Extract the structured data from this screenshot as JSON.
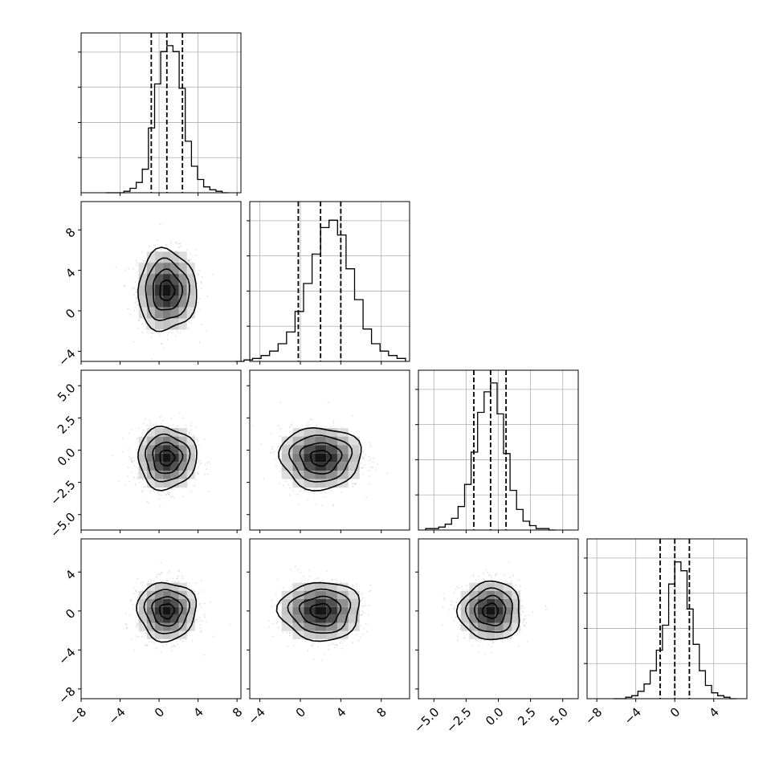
{
  "chart_data": {
    "type": "corner",
    "n_params": 4,
    "quantiles": [
      0.16,
      0.5,
      0.84
    ],
    "grid": true,
    "params": [
      {
        "mean": 0.8,
        "sd": 1.5,
        "range": [
          -8,
          8.4
        ],
        "ticks": [
          -8,
          -4,
          0,
          4,
          8
        ],
        "tick_labels": [
          "−8",
          "−4",
          "0",
          "4",
          "8"
        ],
        "q": [
          -0.8,
          0.8,
          2.4
        ]
      },
      {
        "mean": 2.0,
        "sd": 2.0,
        "range": [
          -5,
          10.8
        ],
        "ticks": [
          -4,
          0,
          4,
          8
        ],
        "tick_labels": [
          "−4",
          "0",
          "4",
          "8"
        ],
        "q": [
          -0.2,
          2.0,
          4.0
        ]
      },
      {
        "mean": -0.6,
        "sd": 1.2,
        "range": [
          -6.2,
          6.2
        ],
        "ticks": [
          -5.0,
          -2.5,
          0.0,
          2.5,
          5.0
        ],
        "tick_labels": [
          "−5.0",
          "−2.5",
          "0.0",
          "2.5",
          "5.0"
        ],
        "q": [
          -1.9,
          -0.6,
          0.6
        ]
      },
      {
        "mean": 0.0,
        "sd": 1.5,
        "range": [
          -9,
          7.4
        ],
        "ticks": [
          -8,
          -4,
          0,
          4
        ],
        "tick_labels": [
          "−8",
          "−4",
          "0",
          "4"
        ],
        "q": [
          -1.5,
          0.0,
          1.5
        ]
      }
    ],
    "hist_density": [
      [
        0,
        0,
        0,
        1,
        3,
        7,
        16,
        44,
        74,
        96,
        100,
        96,
        71,
        35,
        18,
        9,
        4,
        2,
        1,
        0
      ],
      [
        0,
        1,
        2,
        4,
        7,
        12,
        20,
        34,
        53,
        73,
        91,
        96,
        86,
        63,
        42,
        22,
        12,
        7,
        4,
        2
      ],
      [
        1,
        1,
        2,
        4,
        8,
        16,
        31,
        53,
        80,
        94,
        100,
        79,
        52,
        27,
        14,
        6,
        3,
        1,
        1,
        0
      ],
      [
        0,
        0,
        1,
        2,
        5,
        10,
        19,
        33,
        50,
        78,
        93,
        87,
        61,
        37,
        19,
        9,
        4,
        2,
        1,
        0
      ]
    ]
  }
}
